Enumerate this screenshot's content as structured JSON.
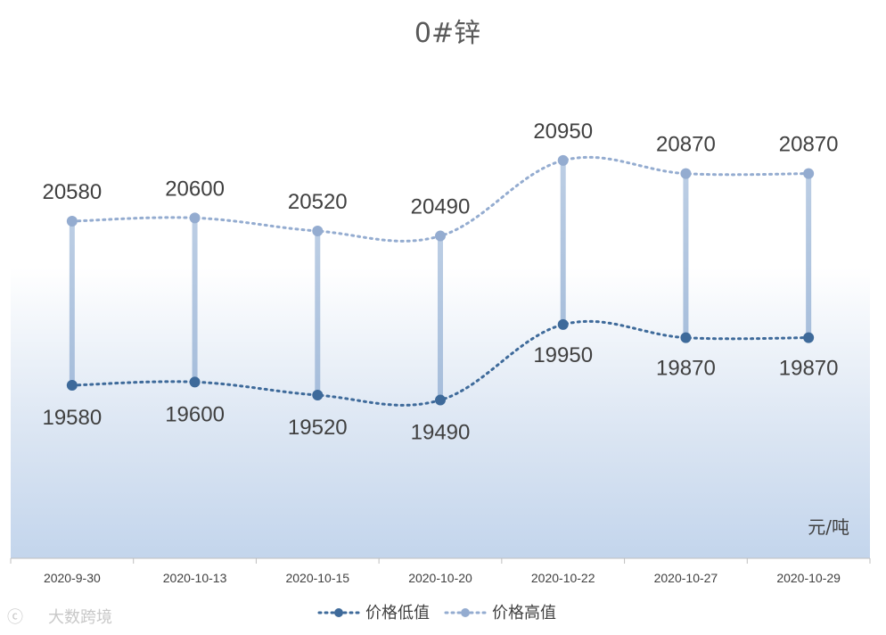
{
  "chart_data": {
    "type": "line",
    "title": "0#锌",
    "unit": "元/吨",
    "categories": [
      "2020-9-30",
      "2020-10-13",
      "2020-10-15",
      "2020-10-20",
      "2020-10-22",
      "2020-10-27",
      "2020-10-29"
    ],
    "series": [
      {
        "name": "价格低值",
        "values": [
          19580,
          19600,
          19520,
          19490,
          19950,
          19870,
          19870
        ],
        "color": "#3e6a9a"
      },
      {
        "name": "价格高值",
        "values": [
          20580,
          20600,
          20520,
          20490,
          20950,
          20870,
          20870
        ],
        "color": "#94acd0"
      }
    ],
    "high_low_lines": true,
    "legend_position": "bottom",
    "grid": false,
    "watermark": "大数跨境"
  }
}
